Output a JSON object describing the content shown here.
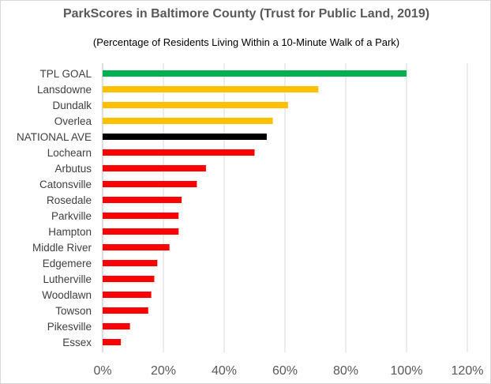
{
  "chart_data": {
    "type": "bar",
    "orientation": "horizontal",
    "title": "ParkScores in Baltimore County (Trust for Public Land, 2019)",
    "subtitle": "(Percentage of Residents Living Within a 10-Minute Walk of a Park)",
    "xlabel": "",
    "ylabel": "",
    "xlim": [
      0,
      120
    ],
    "x_ticks": [
      "0%",
      "20%",
      "40%",
      "60%",
      "80%",
      "100%",
      "120%"
    ],
    "grid": "vertical",
    "legend": "none",
    "categories": [
      "TPL GOAL",
      "Lansdowne",
      "Dundalk",
      "Overlea",
      "NATIONAL AVE",
      "Lochearn",
      "Arbutus",
      "Catonsville",
      "Rosedale",
      "Parkville",
      "Hampton",
      "Middle River",
      "Edgemere",
      "Lutherville",
      "Woodlawn",
      "Towson",
      "Pikesville",
      "Essex"
    ],
    "values": [
      100,
      71,
      61,
      56,
      54,
      50,
      34,
      31,
      26,
      25,
      25,
      22,
      18,
      17,
      16,
      15,
      9,
      6
    ],
    "colors": [
      "#00b050",
      "#ffc000",
      "#ffc000",
      "#ffc000",
      "#000000",
      "#ff0000",
      "#ff0000",
      "#ff0000",
      "#ff0000",
      "#ff0000",
      "#ff0000",
      "#ff0000",
      "#ff0000",
      "#ff0000",
      "#ff0000",
      "#ff0000",
      "#ff0000",
      "#ff0000"
    ]
  }
}
